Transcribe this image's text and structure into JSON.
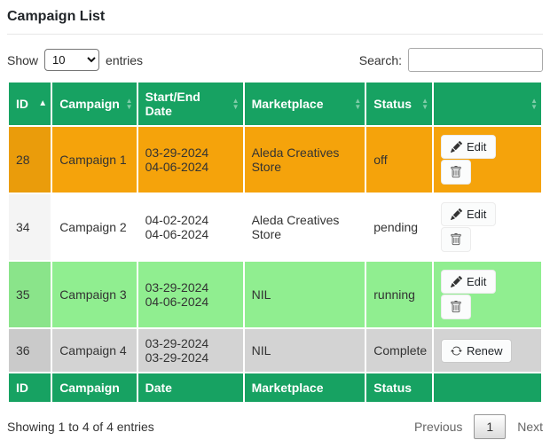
{
  "page": {
    "title": "Campaign List"
  },
  "controls": {
    "show_label": "Show",
    "entries_label": "entries",
    "page_length": "10",
    "search_label": "Search:",
    "search_value": ""
  },
  "icons": {
    "sort_asc": "▲",
    "sort_up": "▲",
    "sort_down": "▼"
  },
  "table": {
    "headers": [
      {
        "label": "ID",
        "sort": "asc"
      },
      {
        "label": "Campaign",
        "sort": "both"
      },
      {
        "label": "Start/End Date",
        "sort": "both"
      },
      {
        "label": "Marketplace",
        "sort": "both"
      },
      {
        "label": "Status",
        "sort": "both"
      },
      {
        "label": "",
        "sort": "both"
      }
    ],
    "footer_headers": [
      "ID",
      "Campaign",
      "Date",
      "Marketplace",
      "Status",
      ""
    ],
    "rows": [
      {
        "id": "28",
        "campaign": "Campaign 1",
        "dates": [
          "03-29-2024",
          "04-06-2024"
        ],
        "marketplace": "Aleda Creatives Store",
        "status": "off",
        "row_color": "#F5A30B",
        "actions": [
          {
            "type": "edit",
            "label": "Edit"
          },
          {
            "type": "delete",
            "label": ""
          }
        ]
      },
      {
        "id": "34",
        "campaign": "Campaign 2",
        "dates": [
          "04-02-2024",
          "04-06-2024"
        ],
        "marketplace": "Aleda Creatives Store",
        "status": "pending",
        "row_color": "#FFFFFF",
        "actions": [
          {
            "type": "edit",
            "label": "Edit"
          },
          {
            "type": "delete",
            "label": ""
          }
        ]
      },
      {
        "id": "35",
        "campaign": "Campaign 3",
        "dates": [
          "03-29-2024",
          "04-06-2024"
        ],
        "marketplace": "NIL",
        "status": "running",
        "row_color": "#90EE90",
        "actions": [
          {
            "type": "edit",
            "label": "Edit"
          },
          {
            "type": "delete",
            "label": ""
          }
        ]
      },
      {
        "id": "36",
        "campaign": "Campaign 4",
        "dates": [
          "03-29-2024",
          "03-29-2024"
        ],
        "marketplace": "NIL",
        "status": "Complete",
        "row_color": "#D3D3D3",
        "actions": [
          {
            "type": "renew",
            "label": "Renew"
          }
        ]
      }
    ]
  },
  "footer": {
    "info": "Showing 1 to 4 of 4 entries",
    "pagination": {
      "previous_label": "Previous",
      "current_page": "1",
      "next_label": "Next"
    }
  },
  "colors": {
    "header_bg": "#17A262",
    "row_off": "#F5A30B",
    "row_pending": "#FFFFFF",
    "row_running": "#90EE90",
    "row_complete": "#D3D3D3"
  }
}
